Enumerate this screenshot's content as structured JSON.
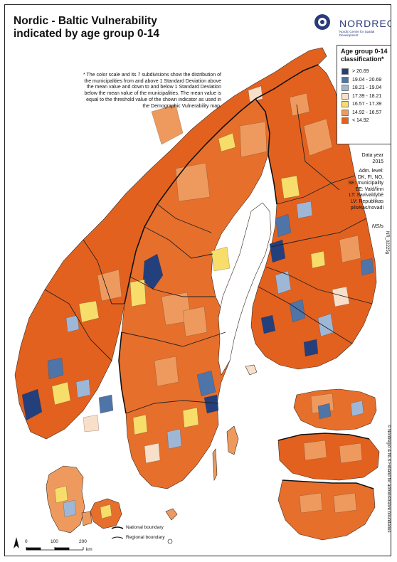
{
  "title": {
    "line1": "Nordic - Baltic Vulnerability",
    "line2": "indicated by age group 0-14"
  },
  "logo": {
    "name": "NORDREGIO",
    "subtitle": "Nordic Centre for Spatial Development"
  },
  "note": "* The color scale and its 7 subdivisions show the distribution of the municipalities from and above 1 Standard Deviation above the mean value and down to and below 1 Standard Deviation below the mean value of the municipalities. The mean value is equal to the threshold value of the shown indicator as used in the Demographic Vulnerability map.",
  "legend": {
    "title_line1": "Age group 0-14",
    "title_line2": "classification*",
    "classes": [
      {
        "label": "> 20.69",
        "color": "#233f7c"
      },
      {
        "label": "19.04 - 20.69",
        "color": "#4e74a8"
      },
      {
        "label": "18.21 - 19.04",
        "color": "#9fb7d6"
      },
      {
        "label": "17.39 - 18.21",
        "color": "#f7dfc9"
      },
      {
        "label": "16.57 - 17.39",
        "color": "#f7dd6a"
      },
      {
        "label": "14.92 - 16.57",
        "color": "#ee9a5e"
      },
      {
        "label": "< 14.92",
        "color": "#e3611f"
      }
    ]
  },
  "info": {
    "data_year_label": "Data year",
    "data_year": "2015",
    "adm_level_label": "Adm. level:",
    "adm_lines": [
      "DK, FI, NO,",
      "SE: municipality",
      "EE: Vald/linn",
      "LT: Savivaldybė",
      "LV: Republikas",
      "pilsētas/novadi"
    ],
    "source_abbr": "NSIs",
    "map_id": "NR_02225g"
  },
  "copyright": "© Nordregio & NLS Finland for administrative boundaries",
  "scale": {
    "ticks": [
      "0",
      "100",
      "200"
    ],
    "unit": "km"
  },
  "boundaries": {
    "national": "National boundary",
    "regional": "Regional boundary"
  },
  "colors": {
    "sea": "#ffffff",
    "border": "#222222"
  }
}
